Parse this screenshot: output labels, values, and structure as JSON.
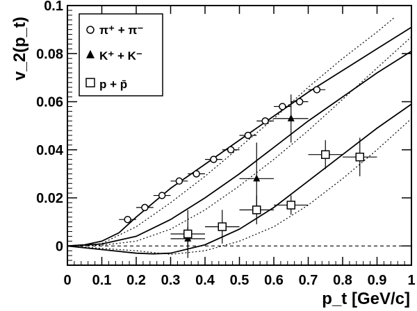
{
  "chart_data": {
    "type": "scatter",
    "xlabel": "p_t [GeV/c]",
    "ylabel": "v_2(p_t)",
    "xlim": [
      0,
      1
    ],
    "ylim": [
      -0.008,
      0.1
    ],
    "x_ticks": [
      0,
      0.1,
      0.2,
      0.3,
      0.4,
      0.5,
      0.6,
      0.7,
      0.8,
      0.9,
      1
    ],
    "x_tick_labels": [
      "0",
      "0.1",
      "0.2",
      "0.3",
      "0.4",
      "0.5",
      "0.6",
      "0.7",
      "0.8",
      "0.9",
      "1"
    ],
    "y_ticks": [
      0,
      0.02,
      0.04,
      0.06,
      0.08,
      0.1
    ],
    "y_tick_labels": [
      "0",
      "0.02",
      "0.04",
      "0.06",
      "0.08",
      "0.1"
    ],
    "grid": false,
    "legend_position": "top-left",
    "series": [
      {
        "name": "π⁺ + π⁻",
        "marker": "open-circle",
        "points": [
          {
            "x": 0.175,
            "y": 0.011,
            "xerr": 0.025,
            "yerr": 0.001
          },
          {
            "x": 0.225,
            "y": 0.016,
            "xerr": 0.025,
            "yerr": 0.001
          },
          {
            "x": 0.275,
            "y": 0.021,
            "xerr": 0.025,
            "yerr": 0.001
          },
          {
            "x": 0.325,
            "y": 0.027,
            "xerr": 0.025,
            "yerr": 0.001
          },
          {
            "x": 0.375,
            "y": 0.03,
            "xerr": 0.025,
            "yerr": 0.001
          },
          {
            "x": 0.425,
            "y": 0.036,
            "xerr": 0.025,
            "yerr": 0.001
          },
          {
            "x": 0.475,
            "y": 0.04,
            "xerr": 0.025,
            "yerr": 0.001
          },
          {
            "x": 0.525,
            "y": 0.046,
            "xerr": 0.025,
            "yerr": 0.001
          },
          {
            "x": 0.575,
            "y": 0.052,
            "xerr": 0.025,
            "yerr": 0.001
          },
          {
            "x": 0.625,
            "y": 0.058,
            "xerr": 0.025,
            "yerr": 0.001
          },
          {
            "x": 0.675,
            "y": 0.06,
            "xerr": 0.025,
            "yerr": 0.001
          },
          {
            "x": 0.725,
            "y": 0.065,
            "xerr": 0.025,
            "yerr": 0.001
          }
        ]
      },
      {
        "name": "K⁺ + K⁻",
        "marker": "filled-triangle",
        "points": [
          {
            "x": 0.35,
            "y": 0.003,
            "xerr": 0.05,
            "yerr": 0.005
          },
          {
            "x": 0.55,
            "y": 0.028,
            "xerr": 0.05,
            "yerr": 0.015
          },
          {
            "x": 0.65,
            "y": 0.053,
            "xerr": 0.05,
            "yerr": 0.01
          }
        ]
      },
      {
        "name": "p + p̄",
        "marker": "open-square",
        "points": [
          {
            "x": 0.35,
            "y": 0.005,
            "xerr": 0.05,
            "yerr": 0.01
          },
          {
            "x": 0.45,
            "y": 0.008,
            "xerr": 0.05,
            "yerr": 0.007
          },
          {
            "x": 0.55,
            "y": 0.015,
            "xerr": 0.05,
            "yerr": 0.006
          },
          {
            "x": 0.65,
            "y": 0.017,
            "xerr": 0.05,
            "yerr": 0.004
          },
          {
            "x": 0.75,
            "y": 0.038,
            "xerr": 0.05,
            "yerr": 0.006
          },
          {
            "x": 0.85,
            "y": 0.037,
            "xerr": 0.05,
            "yerr": 0.008
          }
        ]
      }
    ],
    "curves": [
      {
        "style": "solid",
        "points": [
          [
            0,
            0
          ],
          [
            0.05,
            0.0005
          ],
          [
            0.1,
            0.002
          ],
          [
            0.15,
            0.0055
          ],
          [
            0.2,
            0.012
          ],
          [
            0.3,
            0.024
          ],
          [
            0.4,
            0.034
          ],
          [
            0.5,
            0.044
          ],
          [
            0.6,
            0.054
          ],
          [
            0.7,
            0.064
          ],
          [
            0.8,
            0.073
          ],
          [
            0.9,
            0.082
          ],
          [
            1.0,
            0.091
          ]
        ]
      },
      {
        "style": "dotted",
        "points": [
          [
            0,
            0
          ],
          [
            0.05,
            0.0003
          ],
          [
            0.1,
            0.001
          ],
          [
            0.2,
            0.008
          ],
          [
            0.3,
            0.018
          ],
          [
            0.4,
            0.029
          ],
          [
            0.5,
            0.041
          ],
          [
            0.6,
            0.053
          ],
          [
            0.7,
            0.066
          ],
          [
            0.8,
            0.078
          ],
          [
            0.9,
            0.089
          ],
          [
            0.95,
            0.095
          ]
        ]
      },
      {
        "style": "solid",
        "points": [
          [
            0,
            0
          ],
          [
            0.1,
            0.0008
          ],
          [
            0.2,
            0.004
          ],
          [
            0.3,
            0.011
          ],
          [
            0.4,
            0.02
          ],
          [
            0.5,
            0.03
          ],
          [
            0.6,
            0.041
          ],
          [
            0.7,
            0.052
          ],
          [
            0.8,
            0.062
          ],
          [
            0.9,
            0.072
          ],
          [
            1.0,
            0.081
          ]
        ]
      },
      {
        "style": "dotted",
        "points": [
          [
            0,
            0
          ],
          [
            0.1,
            0.0003
          ],
          [
            0.2,
            0.002
          ],
          [
            0.3,
            0.007
          ],
          [
            0.4,
            0.015
          ],
          [
            0.5,
            0.025
          ],
          [
            0.6,
            0.036
          ],
          [
            0.7,
            0.048
          ],
          [
            0.8,
            0.061
          ],
          [
            0.9,
            0.074
          ],
          [
            1.0,
            0.087
          ]
        ]
      },
      {
        "style": "solid",
        "points": [
          [
            0,
            0
          ],
          [
            0.1,
            -0.0015
          ],
          [
            0.2,
            -0.003
          ],
          [
            0.25,
            -0.0033
          ],
          [
            0.3,
            -0.003
          ],
          [
            0.4,
            0.0005
          ],
          [
            0.5,
            0.007
          ],
          [
            0.6,
            0.016
          ],
          [
            0.7,
            0.027
          ],
          [
            0.8,
            0.038
          ],
          [
            0.9,
            0.049
          ],
          [
            1.0,
            0.059
          ]
        ]
      },
      {
        "style": "dotted",
        "points": [
          [
            0,
            0
          ],
          [
            0.1,
            -0.001
          ],
          [
            0.2,
            -0.002
          ],
          [
            0.3,
            -0.0035
          ],
          [
            0.4,
            -0.002
          ],
          [
            0.5,
            0.002
          ],
          [
            0.6,
            0.008
          ],
          [
            0.7,
            0.017
          ],
          [
            0.8,
            0.028
          ],
          [
            0.9,
            0.04
          ],
          [
            1.0,
            0.053
          ]
        ]
      }
    ],
    "reference_line": {
      "y": 0,
      "style": "dashed"
    }
  },
  "legend": {
    "entries": [
      {
        "marker": "open-circle",
        "label": "π⁺ + π⁻"
      },
      {
        "marker": "filled-triangle",
        "label": "K⁺ + K⁻"
      },
      {
        "marker": "open-square",
        "label": "p + p̄"
      }
    ]
  }
}
